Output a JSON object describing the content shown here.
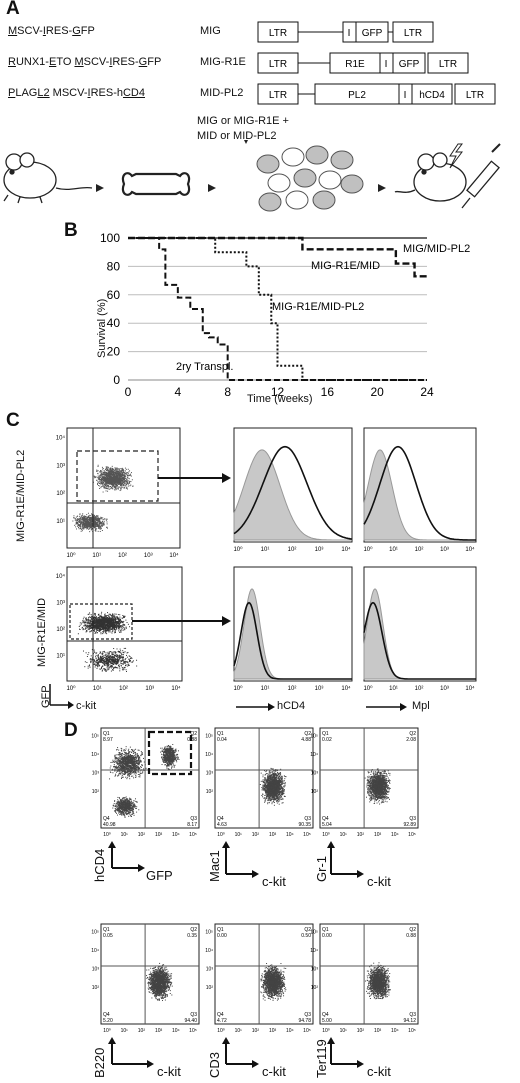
{
  "panel_letters": [
    "A",
    "B",
    "C",
    "D"
  ],
  "panel_a": {
    "constructs": [
      {
        "desc_parts": [
          [
            "M",
            true
          ],
          [
            "SCV-",
            false
          ],
          [
            "I",
            true
          ],
          [
            "RES-",
            false
          ],
          [
            "G",
            true
          ],
          [
            "FP",
            false
          ]
        ],
        "name": "MIG",
        "segments": [
          "LTR",
          "I",
          "GFP",
          "LTR"
        ]
      },
      {
        "desc_parts": [
          [
            "R",
            true
          ],
          [
            "UNX1-",
            false
          ],
          [
            "E",
            true
          ],
          [
            "TO ",
            false
          ],
          [
            "M",
            true
          ],
          [
            "SCV-",
            false
          ],
          [
            "I",
            true
          ],
          [
            "RES-",
            false
          ],
          [
            "G",
            true
          ],
          [
            "FP",
            false
          ]
        ],
        "name": "MIG-R1E",
        "segments": [
          "LTR",
          "R1E",
          "I",
          "GFP",
          "LTR"
        ]
      },
      {
        "desc_parts": [
          [
            "P",
            true
          ],
          [
            "LAG",
            false
          ],
          [
            "L2",
            true
          ],
          [
            " MSCV-",
            false
          ],
          [
            "I",
            true
          ],
          [
            "RES-",
            false
          ],
          [
            "h",
            false
          ],
          [
            "CD4",
            true
          ]
        ],
        "name": "MID-PL2",
        "segments": [
          "LTR",
          "PL2",
          "I",
          "hCD4",
          "LTR"
        ]
      }
    ],
    "workflow_text": [
      "MIG or MIG-R1E +",
      "MID or MID-PL2"
    ]
  },
  "panel_b": {
    "ylabel": "Survival (%)",
    "xlabel": "Time (weeks)",
    "annotations": [
      "MIG/MID-PL2",
      "MIG-R1E/MID",
      "MIG-R1E/MID-PL2",
      "2ry Transpl."
    ]
  },
  "chart_data": {
    "type": "line",
    "title": "",
    "xlabel": "Time (weeks)",
    "ylabel": "Survival (%)",
    "xlim": [
      0,
      24
    ],
    "ylim": [
      0,
      100
    ],
    "xticks": [
      0,
      4,
      8,
      12,
      16,
      20,
      24
    ],
    "yticks": [
      0,
      20,
      40,
      60,
      80,
      100
    ],
    "grid": true,
    "series": [
      {
        "name": "MIG/MID-PL2",
        "style": "solid",
        "x": [
          0,
          24
        ],
        "y": [
          100,
          100
        ]
      },
      {
        "name": "MIG-R1E/MID",
        "style": "dashed-bold",
        "x": [
          0,
          14,
          14,
          21.5,
          21.5,
          23,
          23,
          24
        ],
        "y": [
          100,
          100,
          92,
          92,
          82,
          82,
          73,
          73
        ]
      },
      {
        "name": "MIG-R1E/MID-PL2",
        "style": "dotted",
        "x": [
          0,
          7,
          7,
          9.5,
          9.5,
          10.5,
          10.5,
          11.5,
          11.5,
          12,
          12,
          14,
          14,
          24
        ],
        "y": [
          100,
          100,
          90,
          90,
          80,
          80,
          60,
          60,
          40,
          40,
          10,
          10,
          0,
          0
        ]
      },
      {
        "name": "2ry Transpl.",
        "style": "dashed",
        "x": [
          0,
          2.5,
          2.5,
          3,
          3,
          4,
          4,
          5,
          5,
          6,
          6,
          6.5,
          6.5,
          7.2,
          7.2,
          8,
          8,
          24
        ],
        "y": [
          100,
          100,
          92,
          92,
          67,
          67,
          58,
          58,
          50,
          50,
          33,
          33,
          30,
          30,
          25,
          25,
          0,
          0
        ]
      }
    ]
  },
  "panel_c": {
    "row_labels": [
      "MIG-R1E/MID-PL2",
      "MIG-R1E/MID"
    ],
    "tick_labels": [
      "10⁰",
      "10¹",
      "10²",
      "10³",
      "10⁴"
    ],
    "axis_labels": {
      "gfp": "GFP",
      "ckit": "c-kit",
      "hcd4": "hCD4",
      "mpl": "Mpl"
    }
  },
  "panel_d": {
    "axis_labels": {
      "hcd4": "hCD4",
      "gfp": "GFP",
      "mac1": "Mac1",
      "gr1": "Gr-1",
      "b220": "B220",
      "cd3": "CD3",
      "ter119": "Ter119",
      "ckit": "c-kit"
    },
    "tick_labels": [
      "10⁰",
      "10¹",
      "10²",
      "10³",
      "10⁴",
      "10⁵"
    ],
    "plots": [
      {
        "q1": "Q1",
        "q1v": "8.97",
        "q2": "Q2",
        "q2v": "0.88",
        "q3": "Q3",
        "q3v": "8.17",
        "q4": "Q4",
        "q4v": "40.98"
      },
      {
        "q1": "Q1",
        "q1v": "0.04",
        "q2": "Q2",
        "q2v": "4.88",
        "q3": "Q3",
        "q3v": "90.35",
        "q4": "Q4",
        "q4v": "4.63"
      },
      {
        "q1": "Q1",
        "q1v": "0.02",
        "q2": "Q2",
        "q2v": "2.08",
        "q3": "Q3",
        "q3v": "92.89",
        "q4": "Q4",
        "q4v": "5.04"
      },
      {
        "q1": "Q1",
        "q1v": "0.05",
        "q2": "Q2",
        "q2v": "0.35",
        "q3": "Q3",
        "q3v": "94.40",
        "q4": "Q4",
        "q4v": "5.20"
      },
      {
        "q1": "Q1",
        "q1v": "0.00",
        "q2": "Q2",
        "q2v": "0.50",
        "q3": "Q3",
        "q3v": "94.78",
        "q4": "Q4",
        "q4v": "4.72"
      },
      {
        "q1": "Q1",
        "q1v": "0.00",
        "q2": "Q2",
        "q2v": "0.88",
        "q3": "Q3",
        "q3v": "94.12",
        "q4": "Q4",
        "q4v": "5.00"
      }
    ]
  },
  "colors": {
    "ink": "#111111",
    "grey_fill": "#c8c8c8",
    "gate": "#222222",
    "cell": "#c0c0c0"
  }
}
